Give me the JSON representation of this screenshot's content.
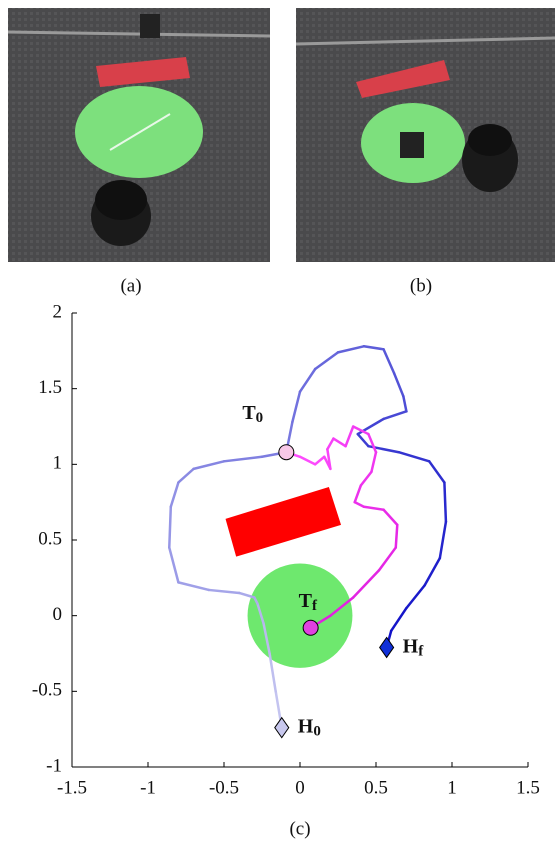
{
  "panels": [
    {
      "caption": "(a)"
    },
    {
      "caption": "(b)"
    }
  ],
  "chart_data": {
    "type": "trajectory",
    "caption": "(c)",
    "xlim": [
      -1.5,
      1.5
    ],
    "ylim": [
      -1,
      2
    ],
    "xticks": [
      -1.5,
      -1,
      -0.5,
      0,
      0.5,
      1,
      1.5
    ],
    "yticks": [
      -1,
      -0.5,
      0,
      0.5,
      1,
      1.5,
      2
    ],
    "goal": {
      "center": [
        0,
        0
      ],
      "radius": 0.345,
      "color": "#6ee86e"
    },
    "obstacle": {
      "x": [
        -0.49,
        0.19,
        0.27,
        -0.42
      ],
      "y": [
        0.64,
        0.85,
        0.6,
        0.39
      ],
      "color": "#ff0000"
    },
    "series": [
      {
        "colors": [
          "#c4c4f0",
          "#1010c8"
        ],
        "x": [
          -0.12,
          -0.16,
          -0.2,
          -0.24,
          -0.28,
          -0.3,
          -0.4,
          -0.6,
          -0.8,
          -0.86,
          -0.85,
          -0.8,
          -0.7,
          -0.5,
          -0.25,
          -0.09,
          -0.05,
          0.0,
          0.1,
          0.25,
          0.42,
          0.55,
          0.62,
          0.68,
          0.7,
          0.55,
          0.38,
          0.45,
          0.65,
          0.85,
          0.95,
          0.96,
          0.92,
          0.82,
          0.7,
          0.6,
          0.57
        ],
        "y": [
          -0.74,
          -0.5,
          -0.25,
          -0.05,
          0.08,
          0.12,
          0.15,
          0.17,
          0.22,
          0.45,
          0.72,
          0.88,
          0.97,
          1.02,
          1.05,
          1.08,
          1.28,
          1.48,
          1.63,
          1.74,
          1.78,
          1.76,
          1.6,
          1.45,
          1.35,
          1.3,
          1.2,
          1.12,
          1.08,
          1.02,
          0.88,
          0.62,
          0.38,
          0.2,
          0.05,
          -0.1,
          -0.21
        ]
      },
      {
        "colors": [
          "#ff4dff",
          "#e020e0"
        ],
        "x": [
          -0.09,
          0.0,
          0.1,
          0.16,
          0.2,
          0.18,
          0.22,
          0.3,
          0.35,
          0.45,
          0.5,
          0.47,
          0.4,
          0.36,
          0.42,
          0.55,
          0.64,
          0.63,
          0.52,
          0.35,
          0.2,
          0.07
        ],
        "y": [
          1.08,
          1.05,
          1.0,
          1.05,
          0.97,
          1.1,
          1.17,
          1.12,
          1.25,
          1.2,
          1.08,
          0.95,
          0.86,
          0.75,
          0.72,
          0.7,
          0.6,
          0.45,
          0.3,
          0.12,
          0.0,
          -0.08
        ]
      }
    ],
    "markers": [
      {
        "label": "T",
        "subscript": "0",
        "shape": "circle",
        "color": "#f8c8e8",
        "x": -0.09,
        "y": 1.08
      },
      {
        "label": "T",
        "subscript": "f",
        "shape": "circle",
        "color": "#e040e0",
        "x": 0.07,
        "y": -0.08
      },
      {
        "label": "H",
        "subscript": "0",
        "shape": "diamond",
        "color": "#c8c8ee",
        "x": -0.12,
        "y": -0.74
      },
      {
        "label": "H",
        "subscript": "f",
        "shape": "diamond",
        "color": "#1030d8",
        "x": 0.57,
        "y": -0.21
      }
    ]
  }
}
